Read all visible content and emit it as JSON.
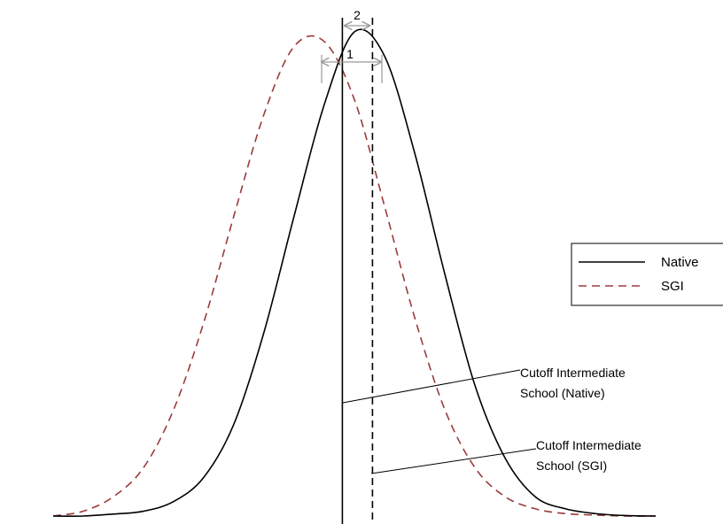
{
  "chart_data": {
    "type": "line",
    "title": "",
    "xlabel": "",
    "ylabel": "",
    "grid": false,
    "legend_position": "right",
    "x": [
      0,
      0.05,
      0.1,
      0.15,
      0.2,
      0.25,
      0.3,
      0.35,
      0.4,
      0.45,
      0.5,
      0.55,
      0.6,
      0.65,
      0.7,
      0.75,
      0.8,
      0.85,
      0.9,
      0.95,
      1.0
    ],
    "xlim": [
      0,
      1
    ],
    "ylim": [
      0,
      1
    ],
    "series": [
      {
        "name": "Native",
        "style": "solid",
        "color": "#000000",
        "values": [
          0.0,
          0.0,
          0.004,
          0.01,
          0.03,
          0.08,
          0.19,
          0.38,
          0.62,
          0.85,
          1.0,
          0.95,
          0.75,
          0.5,
          0.27,
          0.12,
          0.04,
          0.015,
          0.005,
          0.001,
          0.0
        ]
      },
      {
        "name": "SGI",
        "style": "dashed",
        "color": "#9b3b3b",
        "values": [
          0.0,
          0.01,
          0.04,
          0.1,
          0.22,
          0.4,
          0.62,
          0.83,
          0.97,
          0.98,
          0.86,
          0.64,
          0.41,
          0.22,
          0.1,
          0.04,
          0.015,
          0.005,
          0.002,
          0.0,
          0.0
        ]
      }
    ],
    "vertical_lines": [
      {
        "name": "Cutoff Intermediate School (Native)",
        "x": 0.48,
        "style": "solid",
        "color": "#000000"
      },
      {
        "name": "Cutoff Intermediate School (SGI)",
        "x": 0.53,
        "style": "dashed",
        "color": "#000000"
      }
    ],
    "annotations": {
      "marker_1": "1",
      "marker_2": "2",
      "cutoff_native_line1": "Cutoff Intermediate",
      "cutoff_native_line2": "School (Native)",
      "cutoff_sgi_line1": "Cutoff Intermediate",
      "cutoff_sgi_line2": "School (SGI)"
    },
    "legend": {
      "native": "Native",
      "sgi": "SGI"
    }
  }
}
